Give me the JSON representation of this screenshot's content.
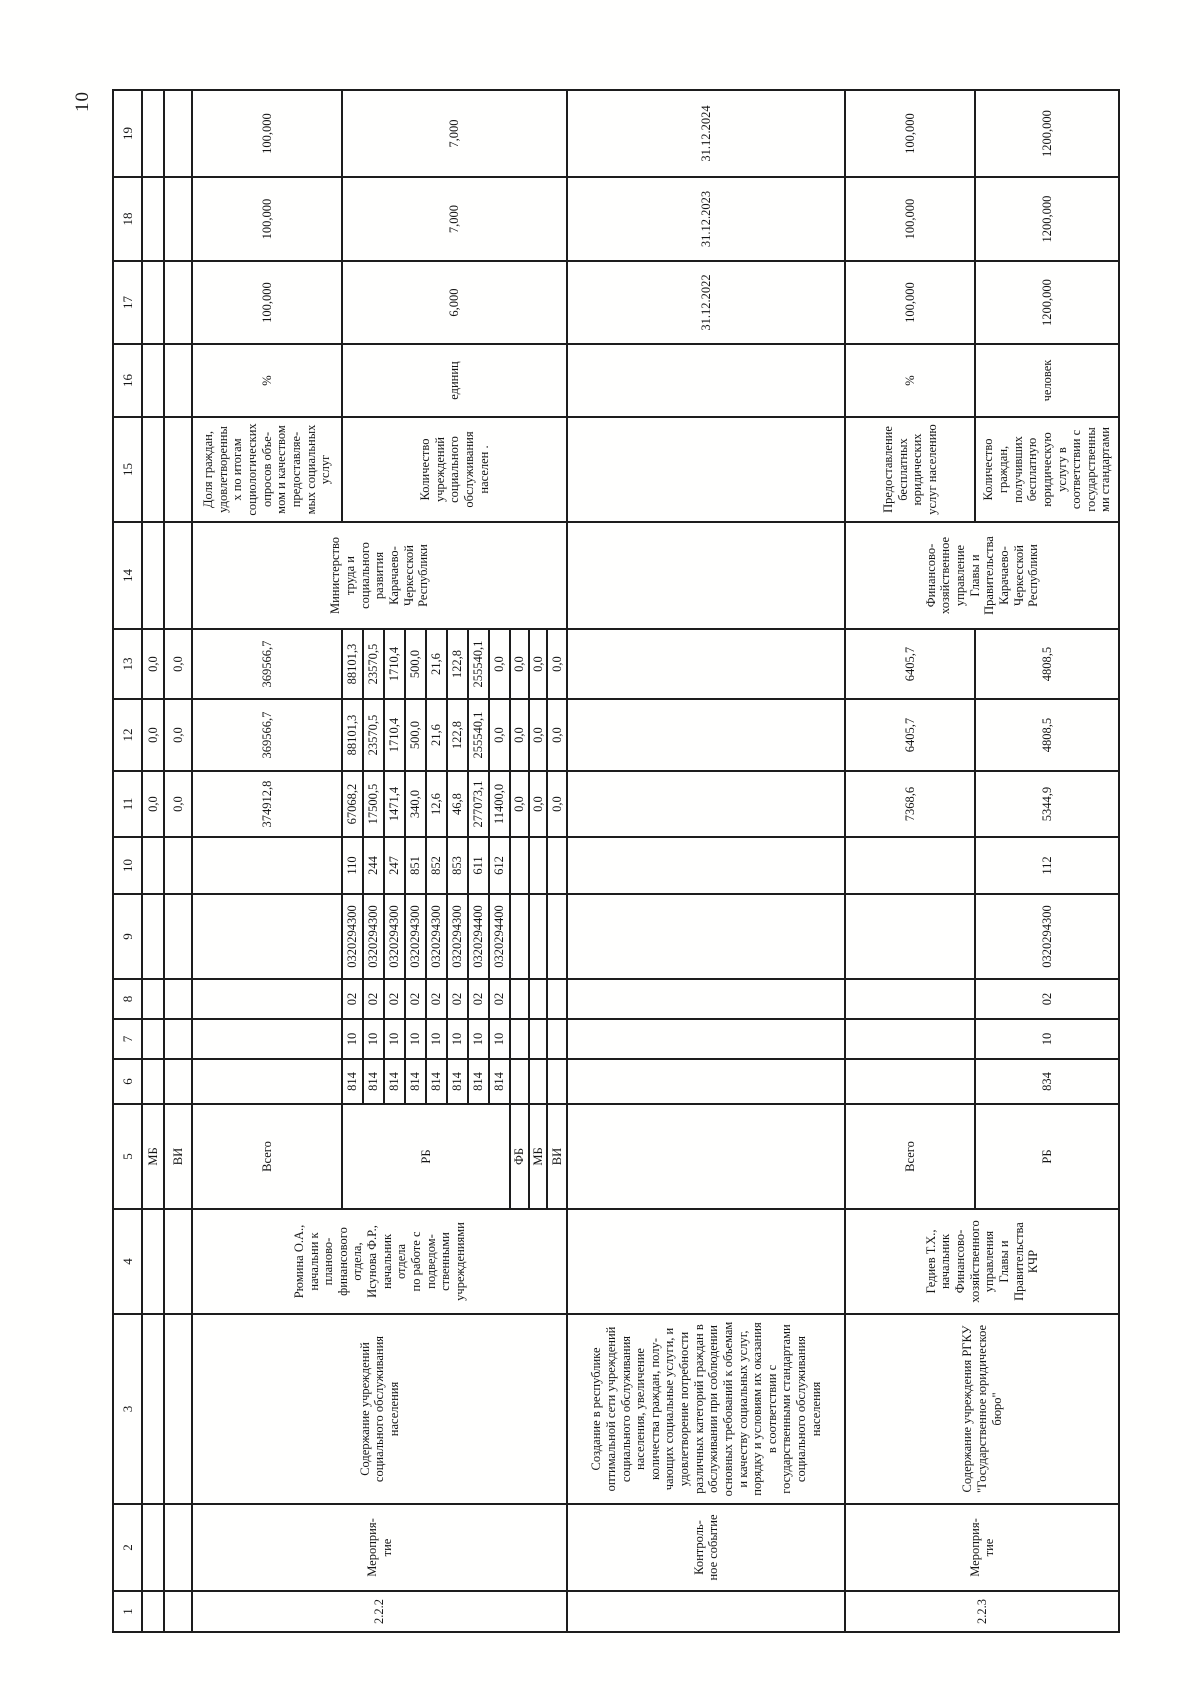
{
  "page_number": "10",
  "table": {
    "column_numbers": [
      "1",
      "2",
      "3",
      "4",
      "5",
      "6",
      "7",
      "8",
      "9",
      "10",
      "11",
      "12",
      "13",
      "14",
      "15",
      "16",
      "17",
      "18",
      "19"
    ],
    "rows": [
      {
        "name": "row-continuation-mb",
        "cells": [
          {},
          {},
          {},
          {},
          {
            "t": "МБ",
            "c": "l",
            "n": "budget-source"
          },
          {},
          {},
          {},
          {},
          {},
          {
            "t": "0,0",
            "n": "amount-2022"
          },
          {
            "t": "0,0",
            "n": "amount-2023"
          },
          {
            "t": "0,0",
            "n": "amount-2024"
          },
          {},
          {},
          {},
          {},
          {},
          {}
        ]
      },
      {
        "name": "row-continuation-vi",
        "cells": [
          {},
          {},
          {},
          {},
          {
            "t": "ВИ",
            "c": "l",
            "n": "budget-source"
          },
          {},
          {},
          {},
          {},
          {},
          {
            "t": "0,0",
            "n": "amount-2022"
          },
          {
            "t": "0,0",
            "n": "amount-2023"
          },
          {
            "t": "0,0",
            "n": "amount-2024"
          },
          {},
          {},
          {},
          {},
          {},
          {}
        ]
      },
      {
        "name": "row-measure-2-2-2",
        "cells": [
          {
            "t": "2.2.2",
            "rs": 12,
            "c": "t",
            "n": "row-number"
          },
          {
            "t": "Мероприя-\nтие",
            "rs": 12,
            "c": "t l p",
            "n": "row-type"
          },
          {
            "t": "Содержание учреждений социального обслуживания населения",
            "rs": 12,
            "c": "t j",
            "n": "measure-title"
          },
          {
            "t": "Рюмина О.А.,\nначальни к\nпланово-\nфинансового\nотдела,\nИсунова Ф.Р.,\nначальник\nотдела\nпо работе с\nподведом-\nственными\nучреждениями",
            "rs": 12,
            "c": "t l p",
            "n": "responsible-person"
          },
          {
            "t": "Всего",
            "c": "t l",
            "n": "budget-source"
          },
          {},
          {},
          {},
          {},
          {},
          {
            "t": "374912,8",
            "c": "t",
            "n": "amount-2022"
          },
          {
            "t": "369566,7",
            "c": "t",
            "n": "amount-2023"
          },
          {
            "t": "369566,7",
            "c": "t",
            "n": "amount-2024"
          },
          {
            "t": "Министерство\nтруда и\nсоциального\nразвития\nКарачаево-\nЧеркесской\nРеспублики",
            "rs": 12,
            "c": "t p",
            "n": "executor"
          },
          {
            "t": "Доля граждан,\nудовлетворенны\nх по итогам\nсоциологических\nопросов объе-\nмом и качеством\nпредоставляе-\nмых социальных\nуслуг",
            "c": "t l p",
            "n": "indicator-name"
          },
          {
            "t": "%",
            "c": "t",
            "n": "indicator-unit"
          },
          {
            "t": "100,000",
            "c": "t",
            "n": "indicator-value-2022"
          },
          {
            "t": "100,000",
            "c": "t",
            "n": "indicator-value-2023"
          },
          {
            "t": "100,000",
            "c": "t",
            "n": "indicator-value-2024"
          }
        ]
      },
      {
        "name": "row-budget-line",
        "cells": [
          {
            "t": "РБ",
            "rs": 8,
            "c": "t l",
            "n": "budget-source"
          },
          {
            "t": "814",
            "n": "grbs-code"
          },
          {
            "t": "10",
            "n": "rz-code"
          },
          {
            "t": "02",
            "n": "pr-code"
          },
          {
            "t": "0320294300",
            "n": "csr-code"
          },
          {
            "t": "110",
            "n": "vr-code"
          },
          {
            "t": "67068,2",
            "n": "amount-2022"
          },
          {
            "t": "88101,3",
            "n": "amount-2023"
          },
          {
            "t": "88101,3",
            "n": "amount-2024"
          },
          {
            "t": "Количество\nучреждений\nсоциального\nобслуживания\nнаселен .",
            "rs": 11,
            "c": "t l p",
            "n": "indicator-name"
          },
          {
            "t": "единиц",
            "rs": 11,
            "c": "t",
            "n": "indicator-unit"
          },
          {
            "t": "6,000",
            "rs": 11,
            "c": "t",
            "n": "indicator-value-2022"
          },
          {
            "t": "7,000",
            "rs": 11,
            "c": "t",
            "n": "indicator-value-2023"
          },
          {
            "t": "7,000",
            "rs": 11,
            "c": "t",
            "n": "indicator-value-2024"
          }
        ]
      },
      {
        "name": "row-budget-line",
        "cells": [
          {
            "t": "814",
            "n": "grbs-code"
          },
          {
            "t": "10",
            "n": "rz-code"
          },
          {
            "t": "02",
            "n": "pr-code"
          },
          {
            "t": "0320294300",
            "n": "csr-code"
          },
          {
            "t": "244",
            "n": "vr-code"
          },
          {
            "t": "17500,5",
            "n": "amount-2022"
          },
          {
            "t": "23570,5",
            "n": "amount-2023"
          },
          {
            "t": "23570,5",
            "n": "amount-2024"
          }
        ]
      },
      {
        "name": "row-budget-line",
        "cells": [
          {
            "t": "814",
            "n": "grbs-code"
          },
          {
            "t": "10",
            "n": "rz-code"
          },
          {
            "t": "02",
            "n": "pr-code"
          },
          {
            "t": "0320294300",
            "n": "csr-code"
          },
          {
            "t": "247",
            "n": "vr-code"
          },
          {
            "t": "1471,4",
            "n": "amount-2022"
          },
          {
            "t": "1710,4",
            "n": "amount-2023"
          },
          {
            "t": "1710,4",
            "n": "amount-2024"
          }
        ]
      },
      {
        "name": "row-budget-line",
        "cells": [
          {
            "t": "814",
            "n": "grbs-code"
          },
          {
            "t": "10",
            "n": "rz-code"
          },
          {
            "t": "02",
            "n": "pr-code"
          },
          {
            "t": "0320294300",
            "n": "csr-code"
          },
          {
            "t": "851",
            "n": "vr-code"
          },
          {
            "t": "340,0",
            "n": "amount-2022"
          },
          {
            "t": "500,0",
            "n": "amount-2023"
          },
          {
            "t": "500,0",
            "n": "amount-2024"
          }
        ]
      },
      {
        "name": "row-budget-line",
        "cells": [
          {
            "t": "814",
            "n": "grbs-code"
          },
          {
            "t": "10",
            "n": "rz-code"
          },
          {
            "t": "02",
            "n": "pr-code"
          },
          {
            "t": "0320294300",
            "n": "csr-code"
          },
          {
            "t": "852",
            "n": "vr-code"
          },
          {
            "t": "12,6",
            "n": "amount-2022"
          },
          {
            "t": "21,6",
            "n": "amount-2023"
          },
          {
            "t": "21,6",
            "n": "amount-2024"
          }
        ]
      },
      {
        "name": "row-budget-line",
        "cells": [
          {
            "t": "814",
            "n": "grbs-code"
          },
          {
            "t": "10",
            "n": "rz-code"
          },
          {
            "t": "02",
            "n": "pr-code"
          },
          {
            "t": "0320294300",
            "n": "csr-code"
          },
          {
            "t": "853",
            "n": "vr-code"
          },
          {
            "t": "46,8",
            "n": "amount-2022"
          },
          {
            "t": "122,8",
            "n": "amount-2023"
          },
          {
            "t": "122,8",
            "n": "amount-2024"
          }
        ]
      },
      {
        "name": "row-budget-line",
        "cells": [
          {
            "t": "814",
            "n": "grbs-code"
          },
          {
            "t": "10",
            "n": "rz-code"
          },
          {
            "t": "02",
            "n": "pr-code"
          },
          {
            "t": "0320294400",
            "n": "csr-code"
          },
          {
            "t": "611",
            "n": "vr-code"
          },
          {
            "t": "277073,1",
            "n": "amount-2022"
          },
          {
            "t": "255540,1",
            "n": "amount-2023"
          },
          {
            "t": "255540,1",
            "n": "amount-2024"
          }
        ]
      },
      {
        "name": "row-budget-line",
        "cells": [
          {
            "t": "814",
            "n": "grbs-code"
          },
          {
            "t": "10",
            "n": "rz-code"
          },
          {
            "t": "02",
            "n": "pr-code"
          },
          {
            "t": "0320294400",
            "n": "csr-code"
          },
          {
            "t": "612",
            "n": "vr-code"
          },
          {
            "t": "11400,0",
            "n": "amount-2022"
          },
          {
            "t": "0,0",
            "n": "amount-2023"
          },
          {
            "t": "0,0",
            "n": "amount-2024"
          }
        ]
      },
      {
        "name": "row-budget-line-fb",
        "cells": [
          {
            "t": "ФБ",
            "c": "l",
            "n": "budget-source"
          },
          {},
          {},
          {},
          {},
          {},
          {
            "t": "0,0",
            "n": "amount-2022"
          },
          {
            "t": "0,0",
            "n": "amount-2023"
          },
          {
            "t": "0,0",
            "n": "amount-2024"
          }
        ]
      },
      {
        "name": "row-budget-line-mb",
        "cells": [
          {
            "t": "МБ",
            "c": "l",
            "n": "budget-source"
          },
          {},
          {},
          {},
          {},
          {},
          {
            "t": "0,0",
            "n": "amount-2022"
          },
          {
            "t": "0,0",
            "n": "amount-2023"
          },
          {
            "t": "0,0",
            "n": "amount-2024"
          }
        ]
      },
      {
        "name": "row-budget-line-vi",
        "cells": [
          {
            "t": "ВИ",
            "c": "l",
            "n": "budget-source"
          },
          {},
          {},
          {},
          {},
          {},
          {
            "t": "0,0",
            "n": "amount-2022"
          },
          {
            "t": "0,0",
            "n": "amount-2023"
          },
          {
            "t": "0,0",
            "n": "amount-2024"
          }
        ]
      },
      {
        "name": "row-control-event",
        "cells": [
          {},
          {
            "t": "Контроль-\nное событие",
            "c": "t l p",
            "n": "row-type"
          },
          {
            "t": "Создание в республике оптимальной сети учреждений социального обслуживания населения, увеличение количества граждан, полу-чающих социальные услуги, и удовлетворение потребности различных категорий граждан в обслуживании при соблюдении основных требований к объемам и качеству социальных услуг, порядку и условиям их оказания в соответствии с государственными стандартами социального обслуживания населения",
            "c": "t j",
            "n": "control-event-title"
          },
          {},
          {},
          {},
          {},
          {},
          {},
          {},
          {},
          {},
          {},
          {},
          {},
          {},
          {
            "t": "31.12.2022",
            "c": "t",
            "n": "control-date-2022"
          },
          {
            "t": "31.12.2023",
            "c": "t",
            "n": "control-date-2023"
          },
          {
            "t": "31.12.2024",
            "c": "t",
            "n": "control-date-2024"
          }
        ]
      },
      {
        "name": "row-measure-2-2-3",
        "cells": [
          {
            "t": "2.2.3",
            "rs": 2,
            "c": "t",
            "n": "row-number"
          },
          {
            "t": "Мероприя-\nтие",
            "rs": 2,
            "c": "t l p",
            "n": "row-type"
          },
          {
            "t": "Содержание учреждения РГКУ \"Государственное юридическое бюро\"",
            "rs": 2,
            "c": "t j",
            "n": "measure-title"
          },
          {
            "t": "Гедиев Т.Х.,\nначальник\nФинансово-\nхозяйственного\nуправления\nГлавы и\nПравительства\nКЧР",
            "rs": 2,
            "c": "t l p",
            "n": "responsible-person"
          },
          {
            "t": "Всего",
            "c": "t l",
            "n": "budget-source"
          },
          {},
          {},
          {},
          {},
          {},
          {
            "t": "7368,6",
            "c": "t",
            "n": "amount-2022"
          },
          {
            "t": "6405,7",
            "c": "t",
            "n": "amount-2023"
          },
          {
            "t": "6405,7",
            "c": "t",
            "n": "amount-2024"
          },
          {
            "t": "Финансово-\nхозяйственное\nуправление\nГлавы и\nПравительства\nКарачаево-\nЧеркесской\nРеспублики",
            "rs": 2,
            "c": "t p",
            "n": "executor"
          },
          {
            "t": "Предоставление\nбесплатных\nюридических\nуслуг населению",
            "c": "t l p",
            "n": "indicator-name"
          },
          {
            "t": "%",
            "c": "t",
            "n": "indicator-unit"
          },
          {
            "t": "100,000",
            "c": "t",
            "n": "indicator-value-2022"
          },
          {
            "t": "100,000",
            "c": "t",
            "n": "indicator-value-2023"
          },
          {
            "t": "100,000",
            "c": "t",
            "n": "indicator-value-2024"
          }
        ]
      },
      {
        "name": "row-budget-line",
        "cells": [
          {
            "t": "РБ",
            "c": "t l",
            "n": "budget-source"
          },
          {
            "t": "834",
            "c": "t",
            "n": "grbs-code"
          },
          {
            "t": "10",
            "c": "t",
            "n": "rz-code"
          },
          {
            "t": "02",
            "c": "t",
            "n": "pr-code"
          },
          {
            "t": "0320294300",
            "c": "t",
            "n": "csr-code"
          },
          {
            "t": "112",
            "c": "t",
            "n": "vr-code"
          },
          {
            "t": "5344,9",
            "c": "t",
            "n": "amount-2022"
          },
          {
            "t": "4808,5",
            "c": "t",
            "n": "amount-2023"
          },
          {
            "t": "4808,5",
            "c": "t",
            "n": "amount-2024"
          },
          {
            "t": "Количество\nграждан,\nполучивших\nбесплатную\nюридическую\nуслугу в\nсоответствии с\nгосударственны\nми стандартами",
            "c": "t l p",
            "n": "indicator-name"
          },
          {
            "t": "человек",
            "c": "t",
            "n": "indicator-unit"
          },
          {
            "t": "1200,000",
            "c": "t",
            "n": "indicator-value-2022"
          },
          {
            "t": "1200,000",
            "c": "t",
            "n": "indicator-value-2023"
          },
          {
            "t": "1200,000",
            "c": "t",
            "n": "indicator-value-2024"
          }
        ]
      }
    ]
  }
}
